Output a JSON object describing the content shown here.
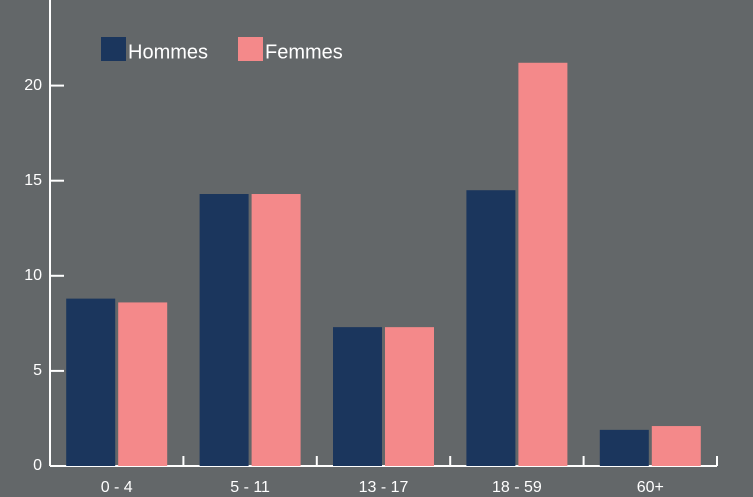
{
  "chart_data": {
    "type": "bar",
    "categories": [
      "0 - 4",
      "5 - 11",
      "13 - 17",
      "18 - 59",
      "60+"
    ],
    "series": [
      {
        "name": "Hommes",
        "color": "#1b365d",
        "values": [
          8.8,
          14.3,
          7.3,
          14.5,
          1.9
        ]
      },
      {
        "name": "Femmes",
        "color": "#f4898a",
        "values": [
          8.6,
          14.3,
          7.3,
          21.2,
          2.1
        ]
      }
    ],
    "ylim": [
      0,
      24.5
    ],
    "yticks": [
      0,
      5,
      10,
      15,
      20
    ],
    "grid": false,
    "legend": "top-left"
  }
}
